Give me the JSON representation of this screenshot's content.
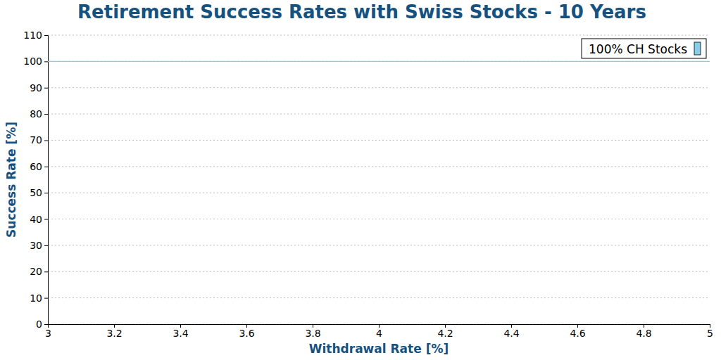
{
  "chart_data": {
    "type": "line",
    "title": "Retirement Success Rates with Swiss Stocks - 10 Years",
    "x_label": "Withdrawal Rate [%]",
    "y_label": "Success Rate [%]",
    "x": [
      3,
      3.25,
      3.5,
      3.75,
      4,
      4.25,
      4.5,
      4.75,
      5
    ],
    "series": [
      {
        "name": "100% CH Stocks",
        "color": "#87ceeb",
        "values": [
          100,
          100,
          100,
          100,
          100,
          100,
          100,
          100,
          100
        ]
      }
    ],
    "xlim": [
      3,
      5
    ],
    "xticks": [
      3,
      3.2,
      3.4,
      3.6,
      3.8,
      4,
      4.2,
      4.4,
      4.6,
      4.8,
      5
    ],
    "ylim": [
      0,
      110
    ],
    "yticks": [
      0,
      10,
      20,
      30,
      40,
      50,
      60,
      70,
      80,
      90,
      100,
      110
    ],
    "grid": true,
    "legend": "upper right"
  }
}
